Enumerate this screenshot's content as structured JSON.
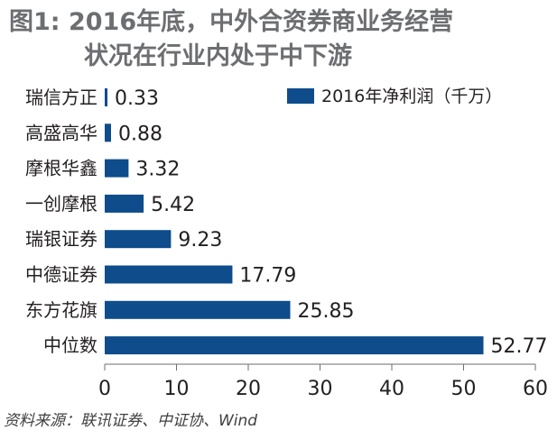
{
  "title_line1": "图1: 2016年底，中外合资券商业务经营",
  "title_line2": "状况在行业内处于中下游",
  "source": "资料来源：联讯证券、中证协、Wind",
  "colors": {
    "bar": "#0e4c8c",
    "title": "#6d6e71",
    "text": "#231f20"
  },
  "chart_data": {
    "type": "bar",
    "orientation": "horizontal",
    "title": "图1: 2016年底，中外合资券商业务经营状况在行业内处于中下游",
    "categories": [
      "瑞信方正",
      "高盛高华",
      "摩根华鑫",
      "一创摩根",
      "瑞银证券",
      "中德证券",
      "东方花旗",
      "中位数"
    ],
    "series": [
      {
        "name": "2016年净利润（千万）",
        "values": [
          0.33,
          0.88,
          3.32,
          5.42,
          9.23,
          17.79,
          25.85,
          52.77
        ]
      }
    ],
    "value_labels": [
      "0.33",
      "0.88",
      "3.32",
      "5.42",
      "9.23",
      "17.79",
      "25.85",
      "52.77"
    ],
    "xlim": [
      0,
      60
    ],
    "xticks": [
      0,
      10,
      20,
      30,
      40,
      50,
      60
    ],
    "xlabel": "",
    "ylabel": "",
    "grid": false,
    "legend_position": "top-right"
  }
}
